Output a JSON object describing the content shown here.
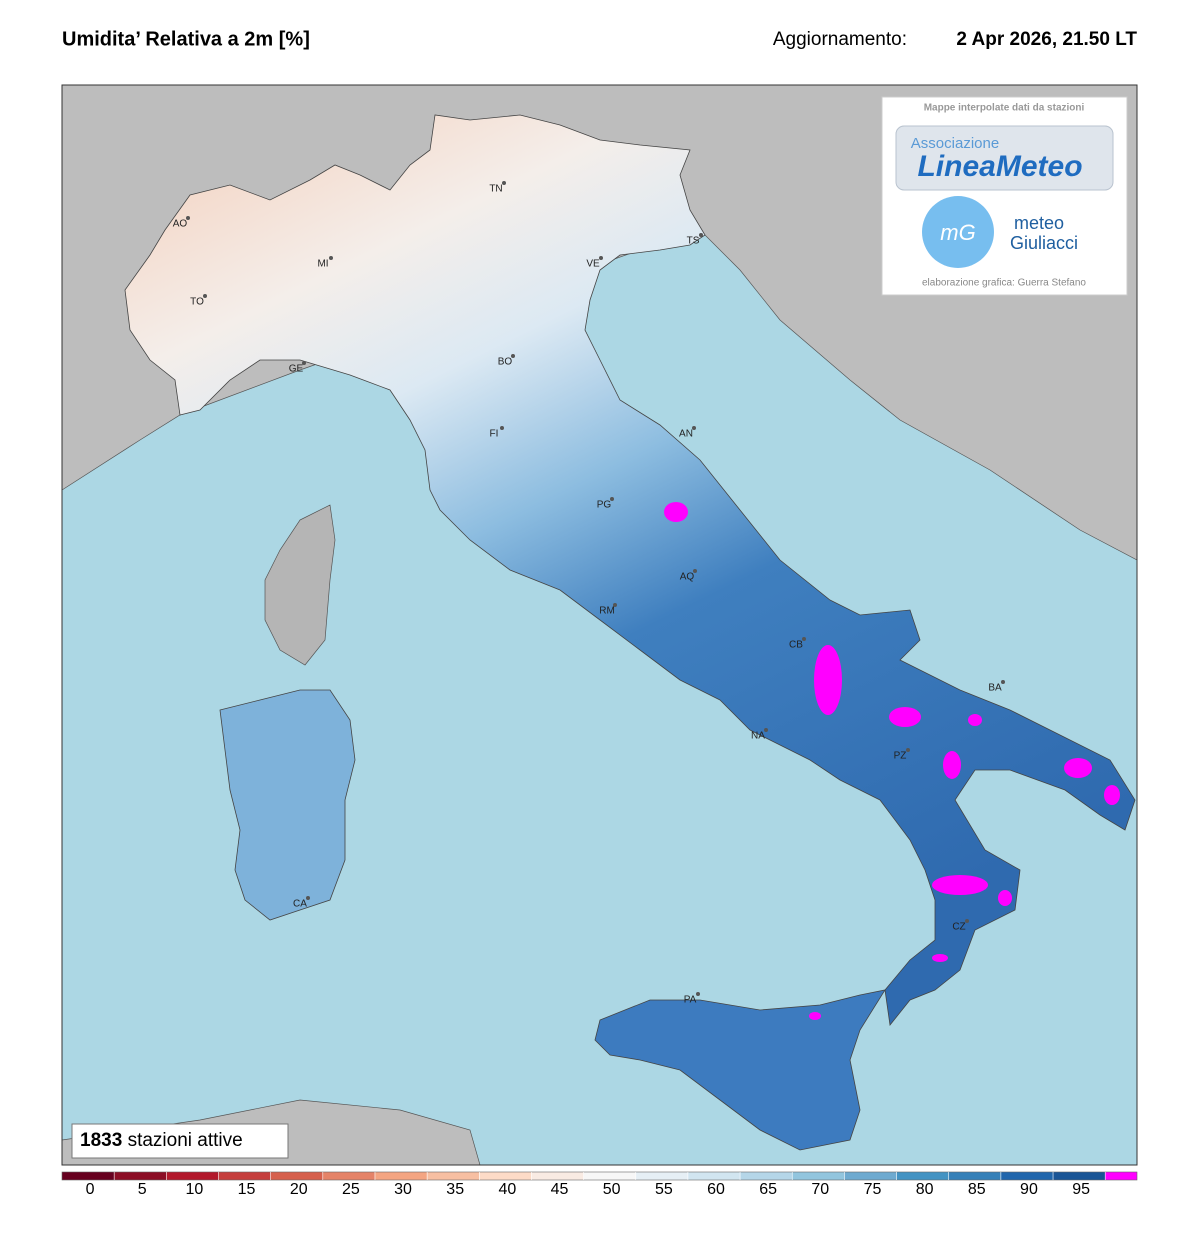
{
  "header": {
    "title": "Umidita’ Relativa a 2m [%]",
    "update_label": "Aggiornamento:",
    "update_time": "2 Apr 2026, 21.50 LT"
  },
  "map": {
    "cities": [
      "AO",
      "TO",
      "MI",
      "GE",
      "TN",
      "VE",
      "TS",
      "BO",
      "FI",
      "AN",
      "PG",
      "AQ",
      "RM",
      "CB",
      "BA",
      "NA",
      "PZ",
      "CZ",
      "PA",
      "CA"
    ]
  },
  "logo": {
    "caption": "Mappe interpolate dati da stazioni",
    "assoc": "Associazione",
    "brand": "LineaMeteo",
    "mg": "mG",
    "meteo": "meteo",
    "giuliacci": "Giuliacci",
    "credit": "elaborazione grafica: Guerra Stefano"
  },
  "stations": {
    "count": "1833",
    "label": "stazioni attive"
  },
  "colorbar": {
    "ticks": [
      0,
      5,
      10,
      15,
      20,
      25,
      30,
      35,
      40,
      45,
      50,
      55,
      60,
      65,
      70,
      75,
      80,
      85,
      90,
      95
    ],
    "colors": [
      "#67001f",
      "#8c0d25",
      "#b2182b",
      "#c53e3d",
      "#d6604d",
      "#e58368",
      "#f4a582",
      "#f7bfa2",
      "#fddbc7",
      "#f9ebe3",
      "#f7f7f7",
      "#e6eff5",
      "#d1e5f0",
      "#b5d6e8",
      "#92c5de",
      "#6eaad0",
      "#4393c3",
      "#3680b8",
      "#2166ac",
      "#1a5596",
      "#ff00ff"
    ]
  }
}
